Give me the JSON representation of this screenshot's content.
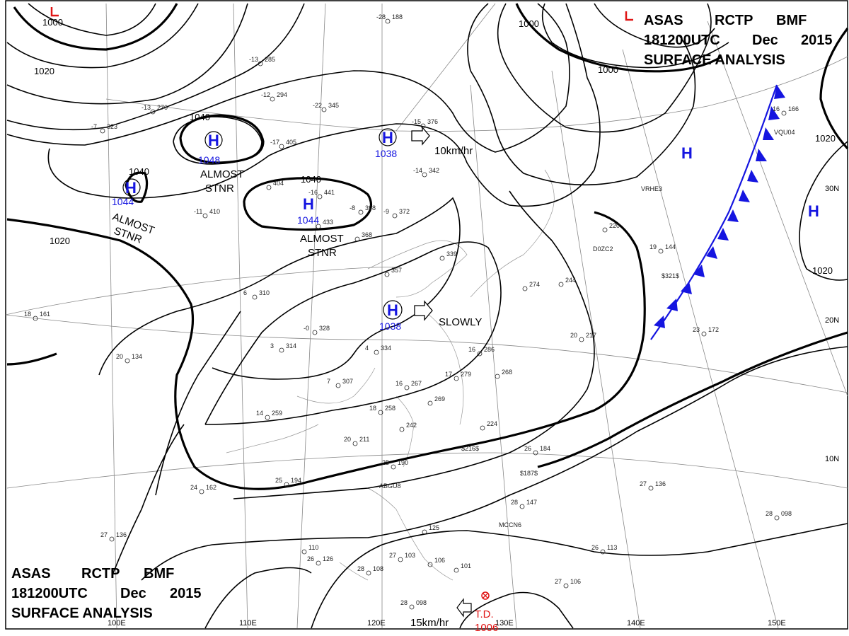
{
  "header_top": {
    "line1": [
      "ASAS",
      "RCTP",
      "BMF"
    ],
    "line2": [
      "181200UTC",
      "Dec",
      "2015"
    ],
    "line3": "SURFACE ANALYSIS"
  },
  "header_bottom": {
    "line1": [
      "ASAS",
      "RCTP",
      "BMF"
    ],
    "line2": [
      "181200UTC",
      "Dec",
      "2015"
    ],
    "line3": "SURFACE ANALYSIS"
  },
  "isobar_labels": {
    "nw_1000": "1000",
    "nw_1020": "1020",
    "w_1020": "1020",
    "h1048_1040": "1040",
    "h1044_1040": "1040",
    "h1044w_1040": "1040",
    "ne_1000a": "1000",
    "ne_1000b": "1000",
    "e_1020a": "1020",
    "e_1020b": "1020"
  },
  "pressure_centers": [
    {
      "letter": "H",
      "value": "1048",
      "status": "ALMOST\nSTNR"
    },
    {
      "letter": "H",
      "value": "1044",
      "status": "ALMOST\nSTNR"
    },
    {
      "letter": "H",
      "value": "1044",
      "status": "ALMOST\nSTNR"
    },
    {
      "letter": "H",
      "value": "1038",
      "motion": "10km/hr"
    },
    {
      "letter": "H",
      "value": "1038",
      "motion": "SLOWLY"
    },
    {
      "letter": "H",
      "value": ""
    },
    {
      "letter": "H",
      "value": ""
    }
  ],
  "tropical": {
    "label": "T.D.",
    "pressure": "1006",
    "motion": "15km/hr"
  },
  "lon_labels": [
    "100E",
    "110E",
    "120E",
    "130E",
    "140E",
    "150E"
  ],
  "lat_labels": [
    "30N",
    "20N",
    "10N"
  ],
  "station_plots": [
    {
      "t": "-28",
      "p": "188"
    },
    {
      "t": "-7",
      "p": "323"
    },
    {
      "t": "-13",
      "p": "285"
    },
    {
      "t": "-12",
      "p": "294"
    },
    {
      "t": "-13",
      "p": "270"
    },
    {
      "t": "-22",
      "p": "345"
    },
    {
      "t": "-17",
      "p": "405"
    },
    {
      "t": "-16",
      "p": "441"
    },
    {
      "t": "-14",
      "p": "342"
    },
    {
      "t": "-15",
      "p": "376"
    },
    {
      "t": "-8",
      "p": "398"
    },
    {
      "t": "-9",
      "p": "372"
    },
    {
      "t": "",
      "p": "368"
    },
    {
      "t": "",
      "p": "433"
    },
    {
      "t": "",
      "p": "404"
    },
    {
      "t": "-11",
      "p": "410"
    },
    {
      "t": "",
      "p": "339"
    },
    {
      "t": "",
      "p": "357"
    },
    {
      "t": "6",
      "p": "310"
    },
    {
      "t": "-0",
      "p": "328"
    },
    {
      "t": "3",
      "p": "314"
    },
    {
      "t": "4",
      "p": "334"
    },
    {
      "t": "16",
      "p": "286"
    },
    {
      "t": "",
      "p": "274"
    },
    {
      "t": "",
      "p": "244"
    },
    {
      "t": "",
      "p": "220"
    },
    {
      "t": "19",
      "p": "144"
    },
    {
      "t": "16",
      "p": "166"
    },
    {
      "t": "23",
      "p": "172"
    },
    {
      "t": "20",
      "p": "217"
    },
    {
      "t": "18",
      "p": "161"
    },
    {
      "t": "20",
      "p": "134"
    },
    {
      "t": "14",
      "p": "259"
    },
    {
      "t": "18",
      "p": "258"
    },
    {
      "t": "16",
      "p": "267"
    },
    {
      "t": "17",
      "p": "279"
    },
    {
      "t": "",
      "p": "269"
    },
    {
      "t": "",
      "p": "268"
    },
    {
      "t": "7",
      "p": "307"
    },
    {
      "t": "",
      "p": "242"
    },
    {
      "t": "",
      "p": "224"
    },
    {
      "t": "26",
      "p": "184"
    },
    {
      "t": "20",
      "p": "211"
    },
    {
      "t": "25",
      "p": "190"
    },
    {
      "t": "24",
      "p": "162"
    },
    {
      "t": "25",
      "p": "194"
    },
    {
      "t": "27",
      "p": "136"
    },
    {
      "t": "28",
      "p": "147"
    },
    {
      "t": "27",
      "p": "136"
    },
    {
      "t": "28",
      "p": "098"
    },
    {
      "t": "26",
      "p": "126"
    },
    {
      "t": "28",
      "p": "108"
    },
    {
      "t": "27",
      "p": "103"
    },
    {
      "t": "",
      "p": "106"
    },
    {
      "t": "",
      "p": "101"
    },
    {
      "t": "27",
      "p": "106"
    },
    {
      "t": "28",
      "p": "098"
    },
    {
      "t": "26",
      "p": "113"
    },
    {
      "t": "",
      "p": "125"
    },
    {
      "t": "",
      "p": "110"
    }
  ],
  "ship_ids": [
    "VRHE3",
    "D0ZC2",
    "$321$",
    "ABGU8",
    "$216$",
    "$187$",
    "MCCN6",
    "VQU04"
  ]
}
